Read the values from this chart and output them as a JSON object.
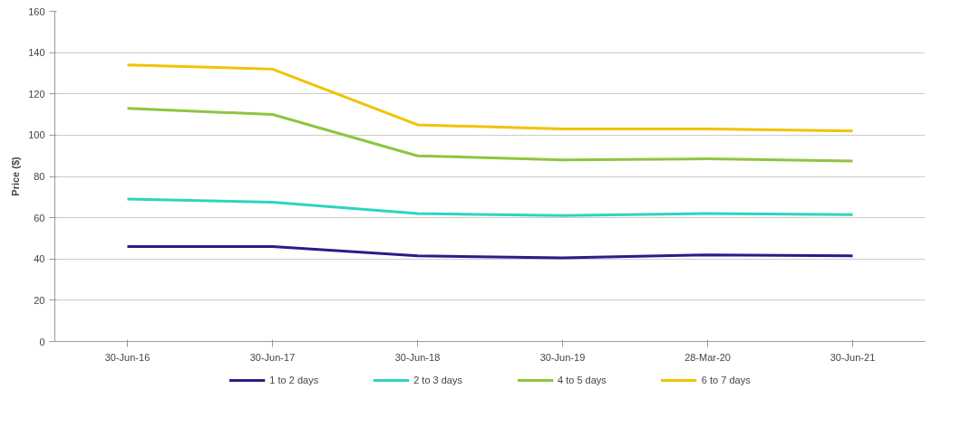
{
  "chart_data": {
    "type": "line",
    "ylabel": "Price ($)",
    "categories": [
      "30-Jun-16",
      "30-Jun-17",
      "30-Jun-18",
      "30-Jun-19",
      "28-Mar-20",
      "30-Jun-21"
    ],
    "series": [
      {
        "name": "1 to 2 days",
        "color": "#2e1a8a",
        "values": [
          46,
          46,
          41.5,
          40.5,
          42,
          41.5
        ]
      },
      {
        "name": "2 to 3 days",
        "color": "#2fd3c0",
        "values": [
          69,
          67.5,
          62,
          61,
          62,
          61.5
        ]
      },
      {
        "name": "4 to 5 days",
        "color": "#8dc63f",
        "values": [
          113,
          110,
          90,
          88,
          88.5,
          87.5
        ]
      },
      {
        "name": "6 to 7 days",
        "color": "#f2c200",
        "values": [
          134,
          132,
          105,
          103,
          103,
          102
        ]
      }
    ],
    "ylim": [
      0,
      160
    ],
    "yticks": [
      0,
      20,
      40,
      60,
      80,
      100,
      120,
      140,
      160
    ],
    "grid": "y",
    "legend": "bottom",
    "marker": "none",
    "line_style": "solid"
  }
}
